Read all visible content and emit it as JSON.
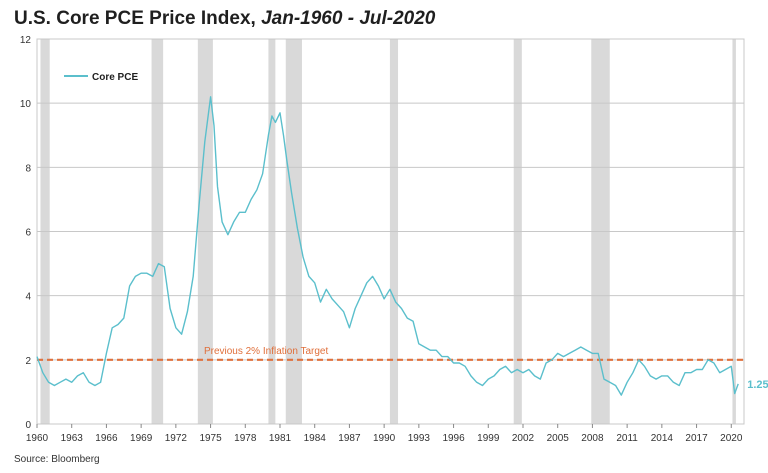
{
  "title": {
    "main": "U.S. Core PCE Price Index, ",
    "italic": "Jan-1960 - Jul-2020"
  },
  "source": "Source: Bloomberg",
  "chart_data": {
    "type": "line",
    "title": "U.S. Core PCE Price Index, Jan-1960 - Jul-2020",
    "xlabel": "",
    "ylabel": "",
    "xlim": [
      1960,
      2021.1
    ],
    "ylim": [
      0,
      12
    ],
    "grid": true,
    "legend": "top-left",
    "colors": {
      "line": "#5bbfcc",
      "target": "#e0703c",
      "recession": "#d9d9d9",
      "grid": "#c8c8c8"
    },
    "x_ticks": [
      "1960",
      "1963",
      "1966",
      "1969",
      "1972",
      "1975",
      "1978",
      "1981",
      "1984",
      "1987",
      "1990",
      "1993",
      "1996",
      "1999",
      "2002",
      "2005",
      "2008",
      "2011",
      "2014",
      "2017",
      "2020"
    ],
    "y_ticks": [
      "0",
      "2",
      "4",
      "6",
      "8",
      "10",
      "12"
    ],
    "recessions": [
      [
        1960.3,
        1961.1
      ],
      [
        1969.9,
        1970.9
      ],
      [
        1973.9,
        1975.2
      ],
      [
        1980.0,
        1980.6
      ],
      [
        1981.5,
        1982.9
      ],
      [
        1990.5,
        1991.2
      ],
      [
        2001.2,
        2001.9
      ],
      [
        2007.9,
        2009.5
      ],
      [
        2020.1,
        2020.4
      ]
    ],
    "target": {
      "value": 2,
      "label": "Previous 2% Inflation Target"
    },
    "end_label": "1.25",
    "series": [
      {
        "name": "Core PCE",
        "x": [
          1960.0,
          1960.5,
          1961.0,
          1961.5,
          1962.0,
          1962.5,
          1963.0,
          1963.5,
          1964.0,
          1964.5,
          1965.0,
          1965.5,
          1966.0,
          1966.5,
          1967.0,
          1967.5,
          1968.0,
          1968.5,
          1969.0,
          1969.5,
          1970.0,
          1970.5,
          1971.0,
          1971.5,
          1972.0,
          1972.5,
          1973.0,
          1973.5,
          1974.0,
          1974.5,
          1975.0,
          1975.3,
          1975.6,
          1976.0,
          1976.5,
          1977.0,
          1977.5,
          1978.0,
          1978.5,
          1979.0,
          1979.5,
          1980.0,
          1980.3,
          1980.6,
          1981.0,
          1981.3,
          1981.6,
          1982.0,
          1982.5,
          1983.0,
          1983.5,
          1984.0,
          1984.5,
          1985.0,
          1985.5,
          1986.0,
          1986.5,
          1987.0,
          1987.5,
          1988.0,
          1988.5,
          1989.0,
          1989.5,
          1990.0,
          1990.5,
          1991.0,
          1991.5,
          1992.0,
          1992.5,
          1993.0,
          1993.5,
          1994.0,
          1994.5,
          1995.0,
          1995.5,
          1996.0,
          1996.5,
          1997.0,
          1997.5,
          1998.0,
          1998.5,
          1999.0,
          1999.5,
          2000.0,
          2000.5,
          2001.0,
          2001.5,
          2002.0,
          2002.5,
          2003.0,
          2003.5,
          2004.0,
          2004.5,
          2005.0,
          2005.5,
          2006.0,
          2006.5,
          2007.0,
          2007.5,
          2008.0,
          2008.5,
          2009.0,
          2009.5,
          2010.0,
          2010.5,
          2011.0,
          2011.5,
          2012.0,
          2012.5,
          2013.0,
          2013.5,
          2014.0,
          2014.5,
          2015.0,
          2015.5,
          2016.0,
          2016.5,
          2017.0,
          2017.5,
          2018.0,
          2018.5,
          2019.0,
          2019.5,
          2020.0,
          2020.3,
          2020.6
        ],
        "values": [
          2.1,
          1.6,
          1.3,
          1.2,
          1.3,
          1.4,
          1.3,
          1.5,
          1.6,
          1.3,
          1.2,
          1.3,
          2.2,
          3.0,
          3.1,
          3.3,
          4.3,
          4.6,
          4.7,
          4.7,
          4.6,
          5.0,
          4.9,
          3.6,
          3.0,
          2.8,
          3.5,
          4.6,
          6.8,
          8.8,
          10.2,
          9.3,
          7.4,
          6.3,
          5.9,
          6.3,
          6.6,
          6.6,
          7.0,
          7.3,
          7.8,
          9.0,
          9.6,
          9.4,
          9.7,
          9.0,
          8.2,
          7.2,
          6.1,
          5.2,
          4.6,
          4.4,
          3.8,
          4.2,
          3.9,
          3.7,
          3.5,
          3.0,
          3.6,
          4.0,
          4.4,
          4.6,
          4.3,
          3.9,
          4.2,
          3.8,
          3.6,
          3.3,
          3.2,
          2.5,
          2.4,
          2.3,
          2.3,
          2.1,
          2.1,
          1.9,
          1.9,
          1.8,
          1.5,
          1.3,
          1.2,
          1.4,
          1.5,
          1.7,
          1.8,
          1.6,
          1.7,
          1.6,
          1.7,
          1.5,
          1.4,
          1.9,
          2.0,
          2.2,
          2.1,
          2.2,
          2.3,
          2.4,
          2.3,
          2.2,
          2.2,
          1.4,
          1.3,
          1.2,
          0.9,
          1.3,
          1.6,
          2.0,
          1.8,
          1.5,
          1.4,
          1.5,
          1.5,
          1.3,
          1.2,
          1.6,
          1.6,
          1.7,
          1.7,
          2.0,
          1.9,
          1.6,
          1.7,
          1.8,
          0.95,
          1.25
        ]
      }
    ]
  }
}
